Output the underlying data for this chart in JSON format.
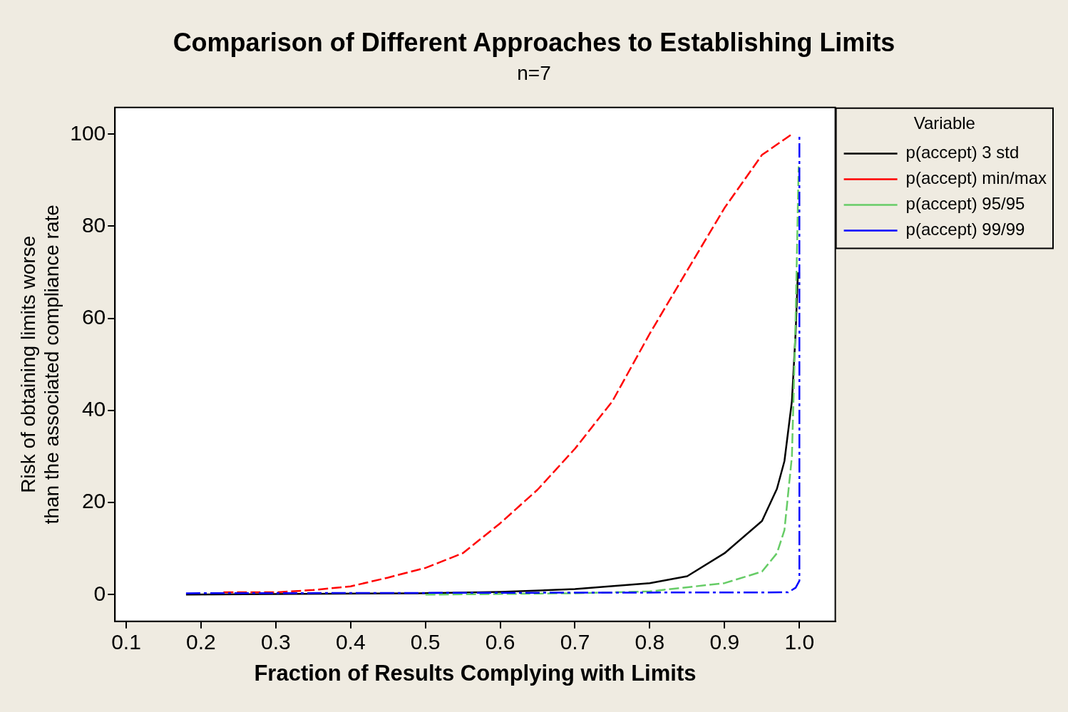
{
  "chart_data": {
    "type": "line",
    "title": "Comparison of Different Approaches to Establishing Limits",
    "subtitle": "n=7",
    "xlabel": "Fraction of Results Complying with Limits",
    "ylabel": "Risk of obtaining limits worse\nthan the associated compliance rate",
    "legend_title": "Variable",
    "legend": "top right",
    "grid": false,
    "marker": "none",
    "xlim": [
      0.085,
      1.048
    ],
    "ylim": [
      -5.8,
      105.8
    ],
    "xticks": [
      0.1,
      0.2,
      0.3,
      0.4,
      0.5,
      0.6,
      0.7,
      0.8,
      0.9,
      {
        "value": 1,
        "label": "1.0"
      }
    ],
    "yticks": [
      0,
      20,
      40,
      60,
      80,
      100
    ],
    "series": [
      {
        "name": "p(accept) 3 std",
        "color": "#000000",
        "line_style": "solid",
        "x": [
          0.18,
          0.49,
          0.6,
          0.7,
          0.8,
          0.85,
          0.9,
          0.95,
          0.97,
          0.98,
          0.99,
          0.995,
          0.998
        ],
        "values": [
          0,
          0.3,
          0.6,
          1.2,
          2.5,
          4,
          9,
          16,
          23,
          29,
          42,
          57,
          70
        ]
      },
      {
        "name": "p(accept) min/max",
        "color": "#ff0000",
        "line_style": "dashed",
        "x": [
          0.23,
          0.3,
          0.35,
          0.4,
          0.45,
          0.5,
          0.55,
          0.6,
          0.65,
          0.7,
          0.75,
          0.8,
          0.85,
          0.9,
          0.95,
          0.99
        ],
        "values": [
          0.5,
          0.5,
          1,
          1.8,
          3.7,
          5.8,
          9,
          15.5,
          22.8,
          31.7,
          42,
          56.7,
          70.4,
          84,
          95.5,
          100
        ]
      },
      {
        "name": "p(accept) 95/95",
        "color": "#66cc66",
        "line_style": "dashed",
        "x": [
          0.5,
          0.7,
          0.8,
          0.9,
          0.95,
          0.97,
          0.98,
          0.99,
          0.995,
          0.999
        ],
        "values": [
          0,
          0.3,
          0.7,
          2.5,
          5,
          9,
          14,
          30,
          60,
          93
        ]
      },
      {
        "name": "p(accept) 99/99",
        "color": "#0000ff",
        "line_style": "dashdot",
        "x": [
          0.18,
          0.985,
          0.995,
          1.0,
          1.0
        ],
        "values": [
          0.3,
          0.5,
          1.5,
          3,
          100
        ]
      }
    ]
  }
}
